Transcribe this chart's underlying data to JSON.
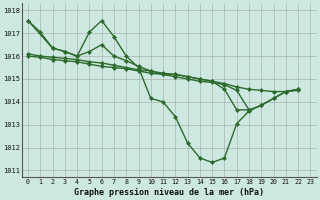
{
  "title": "Graphe pression niveau de la mer (hPa)",
  "background_color": "#cde8e0",
  "line_color": "#2d6a2d",
  "xlim": [
    -0.5,
    23.5
  ],
  "ylim": [
    1010.7,
    1018.3
  ],
  "xticks": [
    0,
    1,
    2,
    3,
    4,
    5,
    6,
    7,
    8,
    9,
    10,
    11,
    12,
    13,
    14,
    15,
    16,
    17,
    18,
    19,
    20,
    21,
    22,
    23
  ],
  "yticks": [
    1011,
    1012,
    1013,
    1014,
    1015,
    1016,
    1017,
    1018
  ],
  "curve1_x": [
    0,
    1,
    2,
    3,
    4,
    5,
    6,
    7,
    8,
    9,
    10,
    11,
    12,
    13,
    14,
    15,
    16,
    17,
    18,
    19,
    20,
    21,
    22
  ],
  "curve1_y": [
    1017.55,
    1017.05,
    1016.35,
    1016.2,
    1016.0,
    1017.05,
    1017.55,
    1016.85,
    1016.0,
    1015.5,
    1014.15,
    1014.0,
    1013.35,
    1012.2,
    1011.55,
    1011.35,
    1011.55,
    1013.05,
    1013.6,
    1013.85,
    1014.15,
    1014.45,
    1014.55
  ],
  "curve2_x": [
    0,
    2,
    3,
    4,
    5,
    6,
    7,
    8,
    9,
    10,
    11,
    12,
    13,
    14,
    15,
    16,
    17,
    18,
    19,
    20,
    21,
    22
  ],
  "curve2_y": [
    1017.55,
    1016.35,
    1016.2,
    1016.0,
    1016.2,
    1016.5,
    1016.0,
    1015.8,
    1015.55,
    1015.35,
    1015.2,
    1015.2,
    1015.1,
    1015.0,
    1014.9,
    1014.55,
    1013.65,
    1013.65,
    1013.85,
    1014.15,
    1014.45,
    1014.55
  ],
  "curve3_x": [
    0,
    1,
    2,
    3,
    4,
    5,
    6,
    7,
    8,
    9,
    10,
    11,
    12,
    13,
    14,
    15,
    16,
    17,
    18,
    19,
    20,
    21,
    22
  ],
  "curve3_y": [
    1016.1,
    1016.0,
    1015.95,
    1015.9,
    1015.85,
    1015.75,
    1015.7,
    1015.6,
    1015.5,
    1015.4,
    1015.35,
    1015.25,
    1015.2,
    1015.1,
    1015.0,
    1014.9,
    1014.8,
    1014.65,
    1014.55,
    1014.5,
    1014.45,
    1014.45,
    1014.5
  ],
  "curve4_x": [
    0,
    1,
    2,
    3,
    4,
    5,
    6,
    7,
    8,
    9,
    10,
    11,
    12,
    13,
    14,
    15,
    16,
    17,
    18
  ],
  "curve4_y": [
    1016.0,
    1015.95,
    1015.85,
    1015.8,
    1015.75,
    1015.65,
    1015.55,
    1015.5,
    1015.45,
    1015.35,
    1015.25,
    1015.2,
    1015.1,
    1015.0,
    1014.9,
    1014.85,
    1014.75,
    1014.5,
    1013.65
  ]
}
